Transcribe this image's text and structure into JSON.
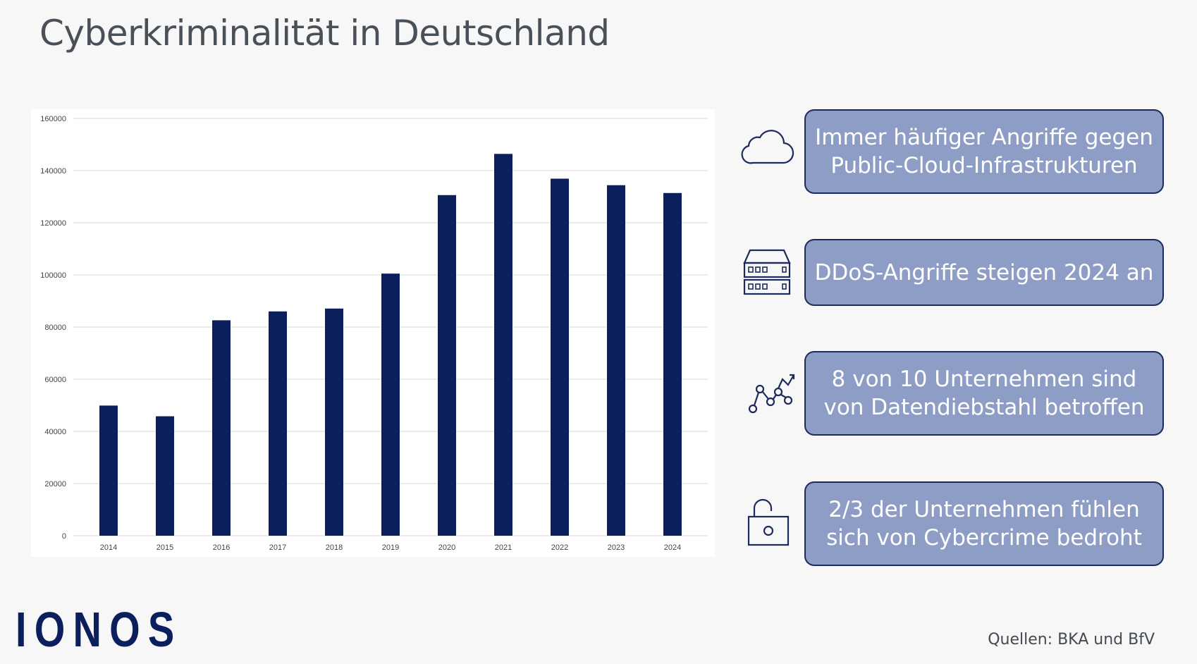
{
  "title": "Cyberkriminalität in Deutschland",
  "chart_data": {
    "type": "bar",
    "categories": [
      "2014",
      "2015",
      "2016",
      "2017",
      "2018",
      "2019",
      "2020",
      "2021",
      "2022",
      "2023",
      "2024"
    ],
    "values": [
      49900,
      45800,
      82600,
      86000,
      87100,
      100500,
      130600,
      146400,
      136900,
      134400,
      131400
    ],
    "title": "",
    "xlabel": "",
    "ylabel": "",
    "ylim": [
      0,
      160000
    ],
    "yticks": [
      "0",
      "20000",
      "40000",
      "60000",
      "80000",
      "100000",
      "120000",
      "140000",
      "160000"
    ],
    "bar_color": "#0b1f5c",
    "grid": true,
    "legend": "none"
  },
  "info_items": [
    {
      "icon": "cloud-icon",
      "text": "Immer häufiger Angriffe gegen\nPublic-Cloud-Infrastrukturen"
    },
    {
      "icon": "server-icon",
      "text": "DDoS-Angriffe steigen 2024 an"
    },
    {
      "icon": "trend-chart-icon",
      "text": "8 von 10 Unternehmen sind\nvon Datendiebstahl betroffen"
    },
    {
      "icon": "unlocked-padlock-icon",
      "text": "2/3 der Unternehmen fühlen\nsich von Cybercrime bedroht"
    }
  ],
  "logo": "IONOS",
  "source": "Quellen: BKA und BfV",
  "colors": {
    "bar": "#0b1f5c",
    "info_box": "#8d9dc6",
    "info_border": "#1c2a5c",
    "icon": "#1c2a5c"
  }
}
